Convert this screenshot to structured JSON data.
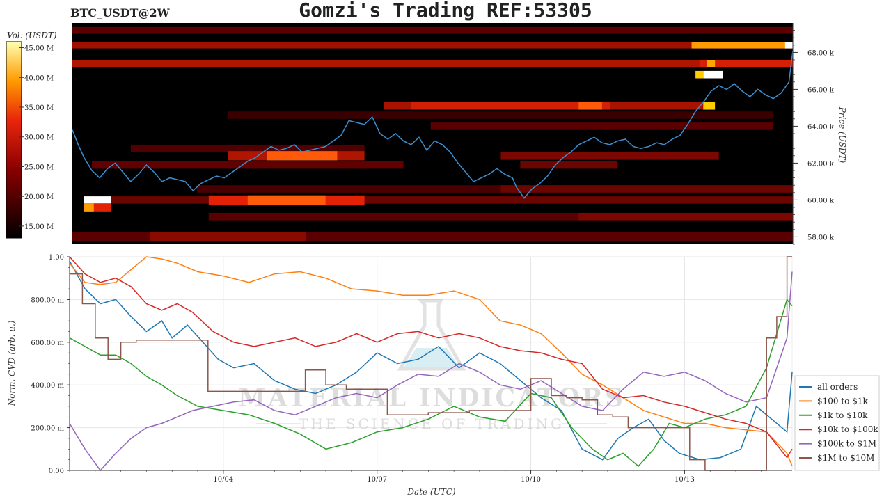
{
  "header": {
    "symbol": "BTC_USDT@2W",
    "title": "Gomzi's Trading REF:53305"
  },
  "colors": {
    "all_orders": "#1f77b4",
    "usd100_1k": "#ff7f0e",
    "usd1k_10k": "#2ca02c",
    "usd10k_100k": "#d62728",
    "usd100k_1m": "#9467bd",
    "usd1m_10m": "#8c564b",
    "price_line": "#3b8fd1"
  },
  "watermark": {
    "brand": "MATERIAL INDICATORS",
    "tagline": "THE SCIENCE OF TRADING"
  },
  "chart_data": [
    {
      "type": "heatmap",
      "name": "orderbook-heatmap",
      "colorbar": {
        "label": "Vol. (USDT)",
        "ticks": [
          "15.00 M",
          "20.00 M",
          "25.00 M",
          "30.00 M",
          "35.00 M",
          "40.00 M",
          "45.00 M"
        ],
        "range": [
          13,
          46
        ]
      },
      "ylabel": "Price (USDT)",
      "yticks": [
        "58.00 k",
        "60.00 k",
        "62.00 k",
        "64.00 k",
        "66.00 k",
        "68.00 k"
      ],
      "ylim": [
        57.6,
        69.6
      ],
      "x_days": [
        0,
        14.1
      ],
      "price": [
        [
          0.0,
          63.8
        ],
        [
          0.15,
          63.0
        ],
        [
          0.3,
          62.3
        ],
        [
          0.5,
          61.6
        ],
        [
          0.7,
          61.2
        ],
        [
          0.9,
          61.7
        ],
        [
          1.1,
          62.0
        ],
        [
          1.3,
          61.5
        ],
        [
          1.5,
          61.0
        ],
        [
          1.7,
          61.4
        ],
        [
          1.9,
          61.9
        ],
        [
          2.1,
          61.5
        ],
        [
          2.3,
          61.0
        ],
        [
          2.5,
          61.2
        ],
        [
          2.7,
          61.1
        ],
        [
          2.9,
          61.0
        ],
        [
          3.1,
          60.5
        ],
        [
          3.3,
          60.9
        ],
        [
          3.5,
          61.1
        ],
        [
          3.7,
          61.3
        ],
        [
          3.9,
          61.2
        ],
        [
          4.1,
          61.5
        ],
        [
          4.3,
          61.8
        ],
        [
          4.5,
          62.1
        ],
        [
          4.7,
          62.3
        ],
        [
          4.9,
          62.6
        ],
        [
          5.1,
          62.9
        ],
        [
          5.3,
          62.7
        ],
        [
          5.5,
          62.8
        ],
        [
          5.7,
          63.0
        ],
        [
          5.9,
          62.6
        ],
        [
          6.1,
          62.7
        ],
        [
          6.3,
          62.8
        ],
        [
          6.5,
          62.9
        ],
        [
          6.7,
          63.2
        ],
        [
          6.9,
          63.5
        ],
        [
          7.1,
          64.3
        ],
        [
          7.3,
          64.2
        ],
        [
          7.5,
          64.1
        ],
        [
          7.7,
          64.5
        ],
        [
          7.9,
          63.6
        ],
        [
          8.1,
          63.3
        ],
        [
          8.3,
          63.6
        ],
        [
          8.5,
          63.2
        ],
        [
          8.7,
          63.0
        ],
        [
          8.9,
          63.4
        ],
        [
          9.1,
          62.7
        ],
        [
          9.3,
          63.2
        ],
        [
          9.5,
          63.0
        ],
        [
          9.7,
          62.6
        ],
        [
          9.9,
          62.0
        ],
        [
          10.1,
          61.5
        ],
        [
          10.3,
          61.0
        ],
        [
          10.5,
          61.2
        ],
        [
          10.7,
          61.4
        ],
        [
          10.9,
          61.7
        ],
        [
          11.1,
          61.4
        ],
        [
          11.3,
          61.2
        ],
        [
          11.4,
          60.7
        ],
        [
          11.6,
          60.1
        ],
        [
          11.8,
          60.6
        ],
        [
          12.0,
          60.9
        ],
        [
          12.2,
          61.3
        ],
        [
          12.4,
          61.9
        ],
        [
          12.6,
          62.3
        ],
        [
          12.8,
          62.6
        ],
        [
          13.0,
          63.0
        ],
        [
          13.2,
          63.2
        ],
        [
          13.4,
          63.4
        ],
        [
          13.6,
          63.1
        ],
        [
          13.8,
          63.0
        ],
        [
          14.0,
          63.2
        ],
        [
          14.2,
          63.3
        ],
        [
          14.4,
          62.9
        ],
        [
          14.6,
          62.8
        ],
        [
          14.8,
          62.9
        ],
        [
          15.0,
          63.1
        ],
        [
          15.2,
          63.0
        ],
        [
          15.4,
          63.3
        ],
        [
          15.6,
          63.5
        ],
        [
          15.8,
          64.1
        ],
        [
          16.0,
          64.8
        ],
        [
          16.2,
          65.3
        ],
        [
          16.4,
          65.9
        ],
        [
          16.6,
          66.2
        ],
        [
          16.8,
          66.0
        ],
        [
          17.0,
          66.3
        ],
        [
          17.2,
          65.9
        ],
        [
          17.4,
          65.6
        ],
        [
          17.6,
          66.0
        ],
        [
          17.8,
          65.7
        ],
        [
          18.0,
          65.5
        ],
        [
          18.2,
          65.8
        ],
        [
          18.4,
          66.4
        ],
        [
          18.5,
          68.1
        ]
      ]
    },
    {
      "type": "line",
      "name": "cvd-chart",
      "xlabel": "Date (UTC)",
      "ylabel": "Norm. CVD (arb. u.)",
      "ylim": [
        0,
        1
      ],
      "yticks": [
        "0.00",
        "200.00 m",
        "400.00 m",
        "600.00 m",
        "800.00 m",
        "1.00"
      ],
      "xticks": [
        "10/04",
        "10/07",
        "10/10",
        "10/13"
      ],
      "xlim": [
        0,
        14.1
      ],
      "legend": "right",
      "series": [
        {
          "name": "all orders",
          "x": [
            0,
            0.3,
            0.6,
            0.9,
            1.2,
            1.5,
            1.8,
            2.0,
            2.3,
            2.6,
            2.9,
            3.2,
            3.6,
            4.0,
            4.4,
            4.8,
            5.2,
            5.6,
            6.0,
            6.4,
            6.8,
            7.2,
            7.6,
            8.0,
            8.4,
            8.8,
            9.2,
            9.6,
            10.0,
            10.4,
            10.7,
            11.0,
            11.3,
            11.6,
            11.9,
            12.3,
            12.7,
            13.1,
            13.4,
            13.7,
            14.0,
            14.1
          ],
          "y": [
            0.98,
            0.85,
            0.78,
            0.8,
            0.72,
            0.65,
            0.7,
            0.62,
            0.68,
            0.6,
            0.52,
            0.48,
            0.5,
            0.42,
            0.38,
            0.36,
            0.4,
            0.46,
            0.55,
            0.5,
            0.52,
            0.58,
            0.48,
            0.55,
            0.5,
            0.42,
            0.34,
            0.28,
            0.1,
            0.05,
            0.15,
            0.2,
            0.24,
            0.14,
            0.08,
            0.05,
            0.06,
            0.1,
            0.3,
            0.24,
            0.18,
            0.46
          ]
        },
        {
          "name": "$100 to $1k",
          "x": [
            0,
            0.3,
            0.6,
            0.9,
            1.2,
            1.5,
            1.8,
            2.1,
            2.5,
            3.0,
            3.5,
            4.0,
            4.5,
            5.0,
            5.5,
            6.0,
            6.5,
            7.0,
            7.5,
            8.0,
            8.4,
            8.8,
            9.2,
            9.6,
            10.0,
            10.4,
            10.8,
            11.2,
            11.6,
            12.0,
            12.4,
            12.8,
            13.2,
            13.6,
            14.0,
            14.1
          ],
          "y": [
            0.97,
            0.88,
            0.87,
            0.88,
            0.94,
            1.0,
            0.99,
            0.97,
            0.93,
            0.91,
            0.88,
            0.92,
            0.93,
            0.9,
            0.85,
            0.84,
            0.82,
            0.82,
            0.84,
            0.8,
            0.7,
            0.68,
            0.64,
            0.55,
            0.45,
            0.4,
            0.34,
            0.28,
            0.25,
            0.22,
            0.22,
            0.2,
            0.19,
            0.18,
            0.08,
            0.02
          ]
        },
        {
          "name": "$1k to $10k",
          "x": [
            0,
            0.3,
            0.6,
            0.9,
            1.2,
            1.5,
            1.8,
            2.1,
            2.5,
            3.0,
            3.5,
            4.0,
            4.5,
            5.0,
            5.5,
            6.0,
            6.5,
            7.0,
            7.5,
            8.0,
            8.5,
            9.0,
            9.4,
            9.8,
            10.2,
            10.5,
            10.8,
            11.1,
            11.4,
            11.7,
            12.0,
            12.4,
            12.8,
            13.2,
            13.6,
            14.0,
            14.1
          ],
          "y": [
            0.62,
            0.58,
            0.54,
            0.54,
            0.5,
            0.44,
            0.4,
            0.35,
            0.3,
            0.28,
            0.26,
            0.22,
            0.17,
            0.1,
            0.13,
            0.18,
            0.2,
            0.24,
            0.3,
            0.25,
            0.23,
            0.36,
            0.34,
            0.2,
            0.1,
            0.05,
            0.08,
            0.02,
            0.1,
            0.22,
            0.2,
            0.24,
            0.26,
            0.3,
            0.48,
            0.8,
            0.77
          ]
        },
        {
          "name": "$10k to $100k",
          "x": [
            0,
            0.3,
            0.6,
            0.9,
            1.2,
            1.5,
            1.8,
            2.1,
            2.4,
            2.8,
            3.2,
            3.6,
            4.0,
            4.4,
            4.8,
            5.2,
            5.6,
            6.0,
            6.4,
            6.8,
            7.2,
            7.6,
            8.0,
            8.4,
            8.8,
            9.2,
            9.6,
            10.0,
            10.4,
            10.8,
            11.2,
            11.6,
            12.0,
            12.4,
            12.8,
            13.2,
            13.6,
            14.0,
            14.1
          ],
          "y": [
            1.0,
            0.92,
            0.88,
            0.9,
            0.86,
            0.78,
            0.75,
            0.78,
            0.74,
            0.65,
            0.6,
            0.58,
            0.6,
            0.62,
            0.58,
            0.6,
            0.64,
            0.6,
            0.64,
            0.65,
            0.62,
            0.64,
            0.62,
            0.58,
            0.56,
            0.55,
            0.52,
            0.5,
            0.38,
            0.34,
            0.35,
            0.32,
            0.3,
            0.27,
            0.24,
            0.22,
            0.18,
            0.06,
            0.1
          ]
        },
        {
          "name": "$100k to $1M",
          "x": [
            0,
            0.3,
            0.6,
            0.9,
            1.2,
            1.5,
            1.8,
            2.1,
            2.4,
            2.8,
            3.2,
            3.6,
            4.0,
            4.4,
            4.8,
            5.2,
            5.6,
            6.0,
            6.4,
            6.8,
            7.2,
            7.6,
            8.0,
            8.4,
            8.8,
            9.2,
            9.6,
            10.0,
            10.4,
            10.8,
            11.2,
            11.6,
            12.0,
            12.4,
            12.8,
            13.2,
            13.6,
            14.0,
            14.1
          ],
          "y": [
            0.22,
            0.1,
            0.0,
            0.08,
            0.15,
            0.2,
            0.22,
            0.25,
            0.28,
            0.3,
            0.32,
            0.33,
            0.28,
            0.26,
            0.3,
            0.34,
            0.36,
            0.34,
            0.4,
            0.45,
            0.44,
            0.5,
            0.46,
            0.4,
            0.38,
            0.42,
            0.36,
            0.3,
            0.28,
            0.38,
            0.46,
            0.44,
            0.46,
            0.42,
            0.36,
            0.32,
            0.34,
            0.62,
            0.93
          ]
        },
        {
          "name": "$1M to $10M",
          "x": [
            0,
            0.25,
            0.5,
            0.75,
            1.0,
            1.3,
            1.6,
            1.9,
            2.1,
            2.4,
            2.7,
            3.0,
            3.3,
            3.6,
            3.9,
            4.2,
            4.6,
            5.0,
            5.4,
            5.8,
            6.2,
            6.6,
            7.0,
            7.4,
            7.8,
            8.2,
            8.6,
            9.0,
            9.4,
            9.7,
            10.0,
            10.3,
            10.6,
            10.9,
            11.2,
            11.5,
            11.8,
            12.1,
            12.4,
            12.7,
            13.0,
            13.3,
            13.6,
            13.8,
            14.0,
            14.1
          ],
          "y": [
            0.92,
            0.78,
            0.62,
            0.52,
            0.6,
            0.61,
            0.61,
            0.61,
            0.61,
            0.61,
            0.37,
            0.37,
            0.37,
            0.37,
            0.37,
            0.37,
            0.47,
            0.4,
            0.38,
            0.38,
            0.26,
            0.26,
            0.27,
            0.27,
            0.28,
            0.28,
            0.28,
            0.43,
            0.35,
            0.34,
            0.33,
            0.26,
            0.25,
            0.2,
            0.2,
            0.2,
            0.2,
            0.05,
            0.0,
            0.0,
            0.0,
            0.0,
            0.62,
            0.72,
            1.0,
            1.0
          ]
        }
      ]
    }
  ]
}
